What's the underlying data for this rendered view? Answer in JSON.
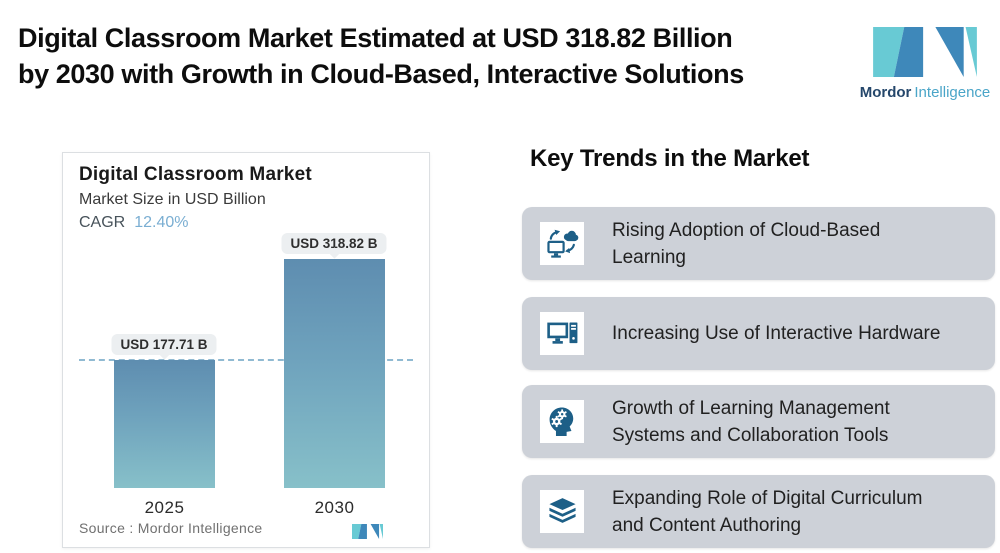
{
  "header": {
    "title_lines": [
      "Digital Classroom Market Estimated at USD 318.82 Billion",
      "by 2030 with Growth in Cloud-Based, Interactive Solutions"
    ],
    "logo": {
      "brand_bold": "Mordor",
      "brand_light": "Intelligence",
      "teal": "#68cad4",
      "blue": "#3e88ba"
    }
  },
  "chart_card": {
    "title": "Digital Classroom Market",
    "subtitle": "Market Size in USD Billion",
    "cagr_label": "CAGR",
    "cagr_value": "12.40%",
    "source": "Source : Mordor Intelligence"
  },
  "chart_data": {
    "type": "bar",
    "title": "Digital Classroom Market",
    "ylabel": "Market Size in USD Billion",
    "cagr_percent": "12.40%",
    "categories": [
      "2025",
      "2030"
    ],
    "values": [
      177.71,
      318.82
    ],
    "bar_labels": [
      "USD 177.71 B",
      "USD 318.82 B"
    ],
    "reference_line_value": 177.71,
    "grid": false,
    "colors": {
      "bar_gradient_top": "#5e8db0",
      "bar_gradient_bottom": "#87c0c9",
      "reference_line": "#90bad2",
      "cagr_value": "#7aaed2"
    }
  },
  "trends": {
    "heading": "Key Trends in the Market",
    "card_color": "#cdd1d8",
    "icon_color": "#1d5f87",
    "items": [
      {
        "icon": "cloud-sync-monitor-icon",
        "lines": [
          "Rising Adoption of Cloud-Based",
          "Learning"
        ]
      },
      {
        "icon": "desktop-computer-icon",
        "lines": [
          "Increasing Use of Interactive Hardware",
          ""
        ]
      },
      {
        "icon": "head-gears-icon",
        "lines": [
          "Growth of Learning Management",
          "Systems and Collaboration Tools"
        ]
      },
      {
        "icon": "books-stack-icon",
        "lines": [
          "Expanding Role of Digital Curriculum",
          "and Content Authoring"
        ]
      }
    ]
  }
}
